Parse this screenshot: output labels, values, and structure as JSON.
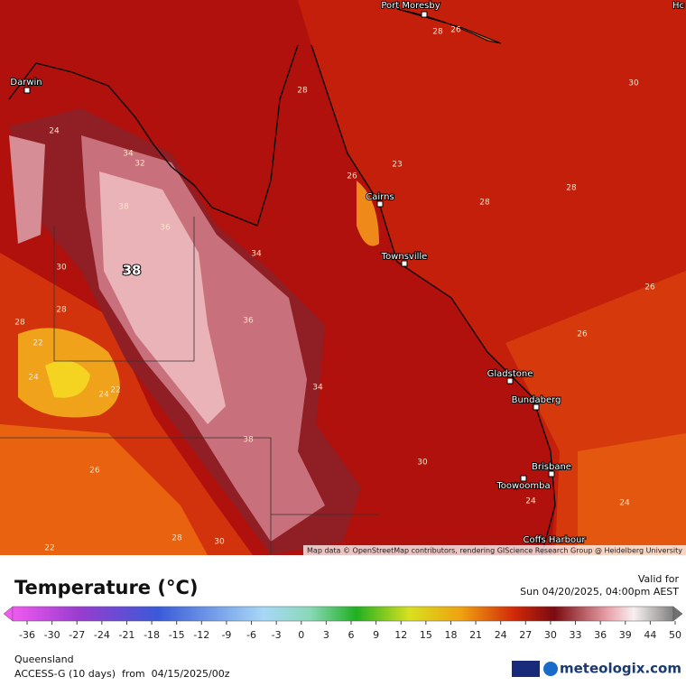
{
  "map": {
    "cities": [
      "Port Moresby",
      "Darwin",
      "Cairns",
      "Townsville",
      "Gladstone",
      "Bundaberg",
      "Brisbane",
      "Toowoomba",
      "Coffs Harbour",
      "Hc"
    ],
    "contour_labels": [
      28,
      26,
      30,
      28,
      24,
      34,
      32,
      23,
      26,
      28,
      28,
      38,
      36,
      34,
      30,
      26,
      28,
      36,
      28,
      22,
      26,
      24,
      24,
      22,
      34,
      38,
      26,
      24,
      24,
      28,
      30,
      22,
      30
    ],
    "max_label": 38,
    "attribution": "Map data © OpenStreetMap contributors, rendering GIScience Research Group @ Heidelberg University"
  },
  "legend": {
    "title": "Temperature (°C)",
    "valid_label": "Valid for",
    "valid_time": "Sun 04/20/2025, 04:00pm AEST",
    "ticks": [
      -36,
      -30,
      -27,
      -24,
      -21,
      -18,
      -15,
      -12,
      -9,
      -6,
      -3,
      0,
      3,
      6,
      9,
      12,
      15,
      18,
      21,
      24,
      27,
      30,
      33,
      36,
      39,
      44,
      50
    ],
    "region": "Queensland",
    "model": "ACCESS-G (10 days)  from  04/15/2025/00z",
    "brand": "meteologix.com"
  }
}
